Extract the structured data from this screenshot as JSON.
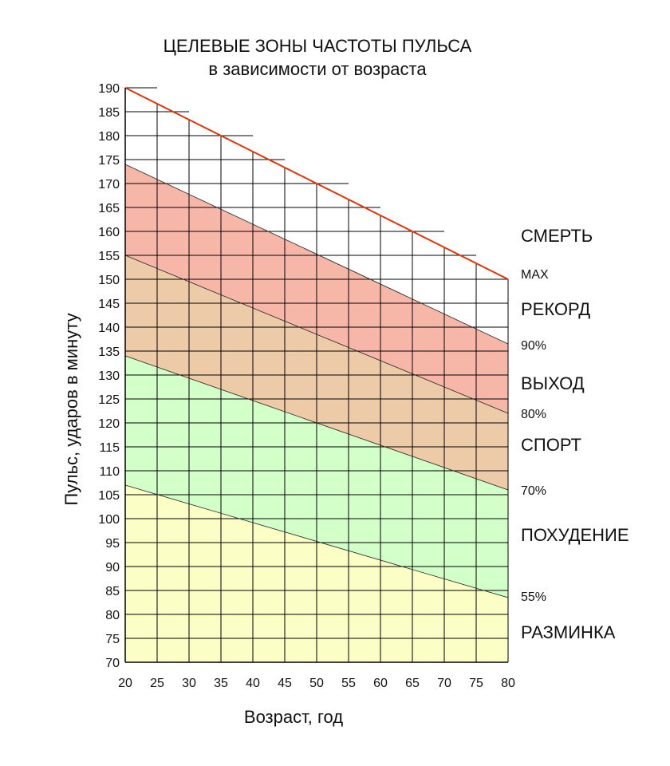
{
  "chart_data": {
    "type": "area",
    "title": "ЦЕЛЕВЫЕ ЗОНЫ ЧАСТОТЫ ПУЛЬСА",
    "subtitle": "в зависимости от возраста",
    "xlabel": "Возраст, год",
    "ylabel": "Пульс, ударов в минуту",
    "xlim": [
      20,
      80
    ],
    "ylim": [
      70,
      190
    ],
    "x_ticks": [
      "20",
      "25",
      "30",
      "35",
      "40",
      "45",
      "50",
      "55",
      "60",
      "65",
      "70",
      "75",
      "80"
    ],
    "y_ticks": [
      "70",
      "75",
      "80",
      "85",
      "90",
      "95",
      "100",
      "105",
      "110",
      "115",
      "120",
      "125",
      "130",
      "135",
      "140",
      "145",
      "150",
      "155",
      "160",
      "165",
      "170",
      "175",
      "180",
      "185",
      "190"
    ],
    "max_line": {
      "name": "MAX",
      "x": [
        20,
        80
      ],
      "y": [
        190,
        150
      ],
      "color": "#d23a12"
    },
    "boundaries": [
      {
        "label": "90%",
        "x": [
          20,
          80
        ],
        "y": [
          174,
          136.5
        ]
      },
      {
        "label": "80%",
        "x": [
          20,
          80
        ],
        "y": [
          155,
          122
        ]
      },
      {
        "label": "70%",
        "x": [
          20,
          80
        ],
        "y": [
          134,
          106
        ]
      },
      {
        "label": "55%",
        "x": [
          20,
          80
        ],
        "y": [
          107,
          83.5
        ]
      }
    ],
    "zones": [
      {
        "name": "СМЕРТЬ",
        "color": "#ffffff"
      },
      {
        "name": "РЕКОРД",
        "color": "#f7b7a8"
      },
      {
        "name": "ВЫХОД",
        "color": "#eecba8"
      },
      {
        "name": "СПОРТ",
        "color": "#d3ffc9"
      },
      {
        "name": "ПОХУДЕНИЕ",
        "color": "#d3ffc9"
      },
      {
        "name": "РАЗМИНКА",
        "color": "#fbffc6"
      }
    ],
    "grid": true
  }
}
